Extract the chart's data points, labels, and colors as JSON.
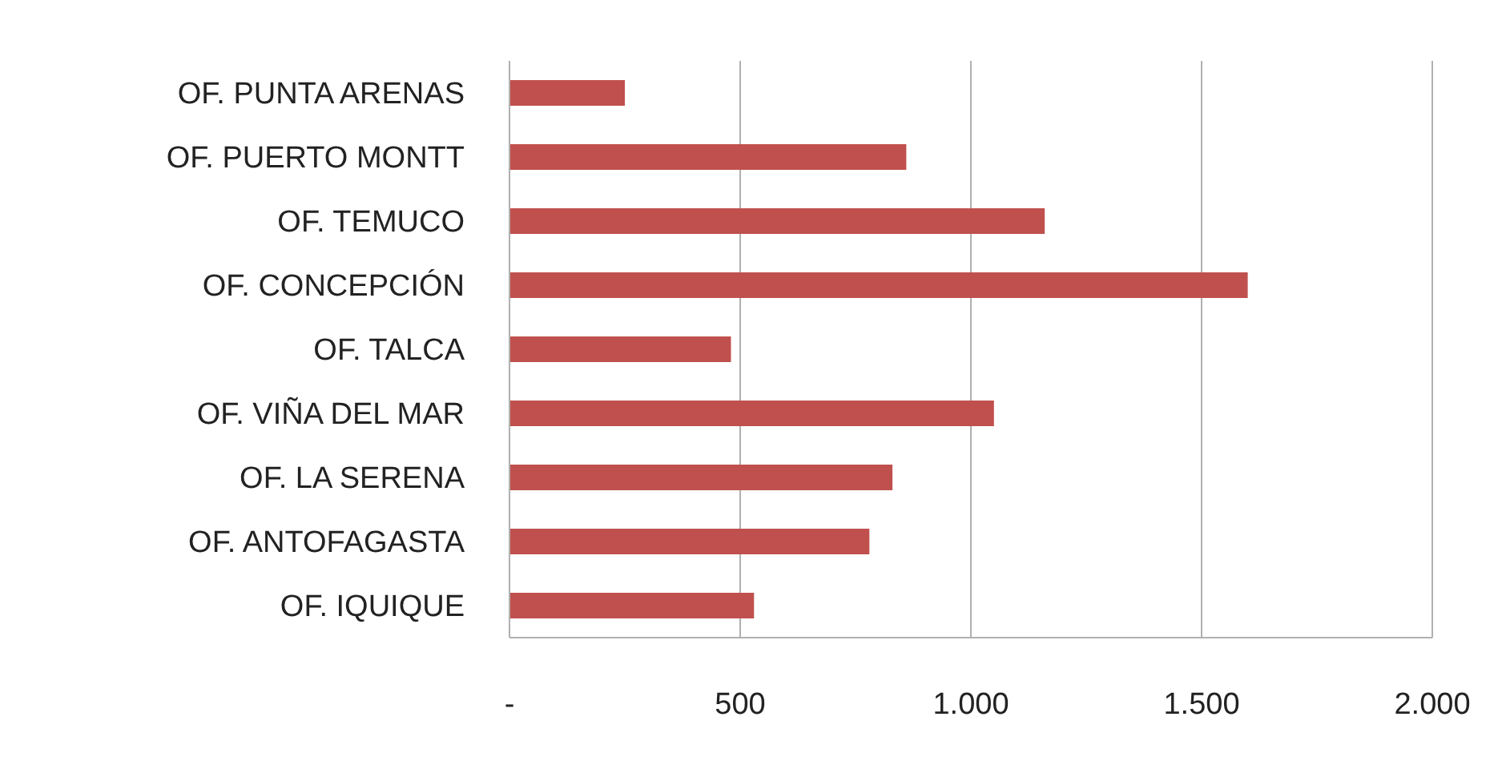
{
  "chart_data": {
    "type": "bar",
    "orientation": "horizontal",
    "categories": [
      "OF. PUNTA ARENAS",
      "OF. PUERTO MONTT",
      "OF. TEMUCO",
      "OF. CONCEPCIÓN",
      "OF. TALCA",
      "OF. VIÑA DEL MAR",
      "OF. LA SERENA",
      "OF. ANTOFAGASTA",
      "OF. IQUIQUE"
    ],
    "values": [
      250,
      860,
      1160,
      1600,
      480,
      1050,
      830,
      780,
      530
    ],
    "color": "#c0504d",
    "xlim": [
      0,
      2000
    ],
    "xticks": [
      {
        "value": 0,
        "label": "-"
      },
      {
        "value": 500,
        "label": "500"
      },
      {
        "value": 1000,
        "label": "1.000"
      },
      {
        "value": 1500,
        "label": "1.500"
      },
      {
        "value": 2000,
        "label": "2.000"
      }
    ],
    "grid": "x"
  }
}
